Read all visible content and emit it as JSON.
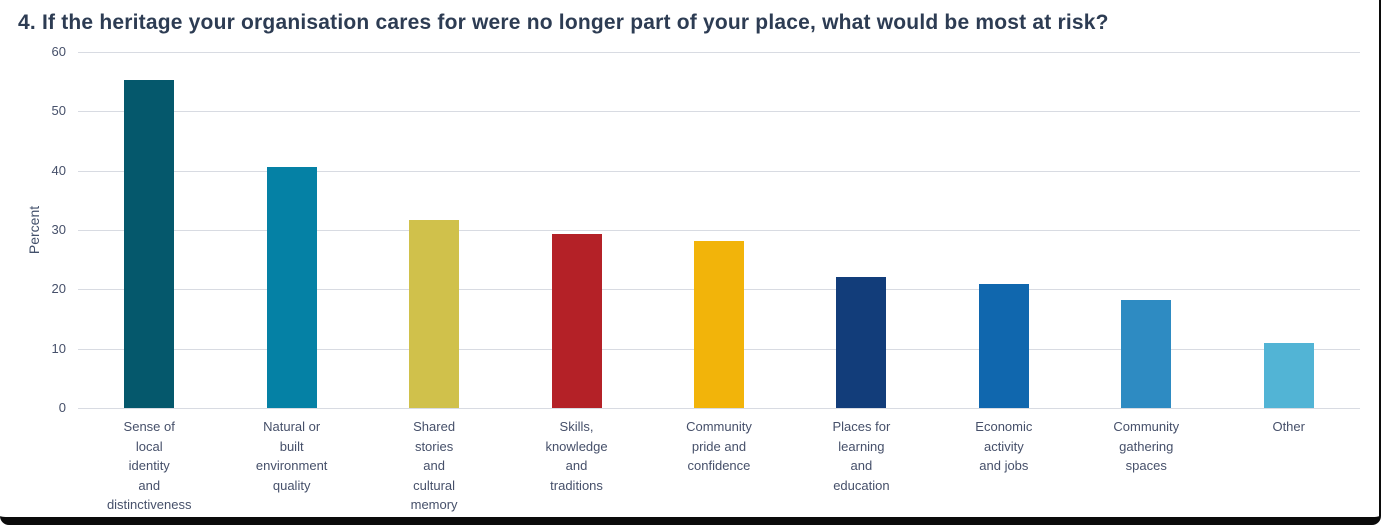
{
  "chart_data": {
    "type": "bar",
    "title": "4. If the heritage your organisation cares for were no longer part of your place, what would be most at risk?",
    "xlabel": "",
    "ylabel": "Percent",
    "ylim": [
      0,
      60
    ],
    "yticks": [
      0,
      10,
      20,
      30,
      40,
      50,
      60
    ],
    "grid": "horizontal",
    "legend": "none",
    "categories": [
      "Sense of local identity and distinctiveness",
      "Natural or built environment quality",
      "Shared stories and cultural memory",
      "Skills, knowledge and traditions",
      "Community pride and confidence",
      "Places for learning and education",
      "Economic activity and jobs",
      "Community gathering spaces",
      "Other"
    ],
    "category_lines": [
      [
        "Sense of",
        "local",
        "identity",
        "and",
        "distinctiveness"
      ],
      [
        "Natural or",
        "built",
        "environment",
        "quality"
      ],
      [
        "Shared",
        "stories",
        "and",
        "cultural",
        "memory"
      ],
      [
        "Skills,",
        "knowledge",
        "and",
        "traditions"
      ],
      [
        "Community",
        "pride and",
        "confidence"
      ],
      [
        "Places for",
        "learning",
        "and",
        "education"
      ],
      [
        "Economic",
        "activity",
        "and jobs"
      ],
      [
        "Community",
        "gathering",
        "spaces"
      ],
      [
        "Other"
      ]
    ],
    "values": [
      55.3,
      40.6,
      31.7,
      29.4,
      28.2,
      22.1,
      20.9,
      18.2,
      11.0
    ],
    "bar_colors": [
      "#05586c",
      "#0581a5",
      "#d0c14b",
      "#b42127",
      "#f2b40a",
      "#123d7a",
      "#1067ae",
      "#2e8bc2",
      "#52b4d5"
    ],
    "colors": {
      "title_text": "#2d3c53",
      "axis_text": "#46506a",
      "gridline": "#d8dbe2",
      "frame_border": "#0b0b0b",
      "background": "#ffffff"
    }
  }
}
